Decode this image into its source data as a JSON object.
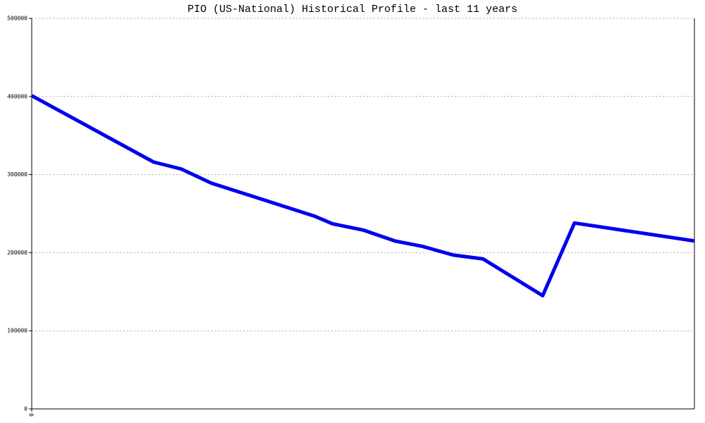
{
  "chart_data": {
    "type": "line",
    "title": "PIO (US-National) Historical Profile - last 11 years",
    "x": [
      0,
      18.4,
      22.6,
      27.1,
      42.6,
      45.4,
      50.0,
      54.8,
      59.0,
      63.6,
      68.1,
      77.1,
      81.9,
      100
    ],
    "series": [
      {
        "color": "#0000ee",
        "values": [
          401000,
          316000,
          307000,
          289000,
          247000,
          237000,
          229000,
          215000,
          208000,
          197000,
          192000,
          145000,
          238000,
          215000
        ]
      }
    ],
    "xlim": [
      0,
      100
    ],
    "xticks": [
      0
    ],
    "ylim": [
      0,
      500000
    ],
    "yticks": [
      0,
      100000,
      200000,
      300000,
      400000,
      500000
    ],
    "grid": true
  }
}
